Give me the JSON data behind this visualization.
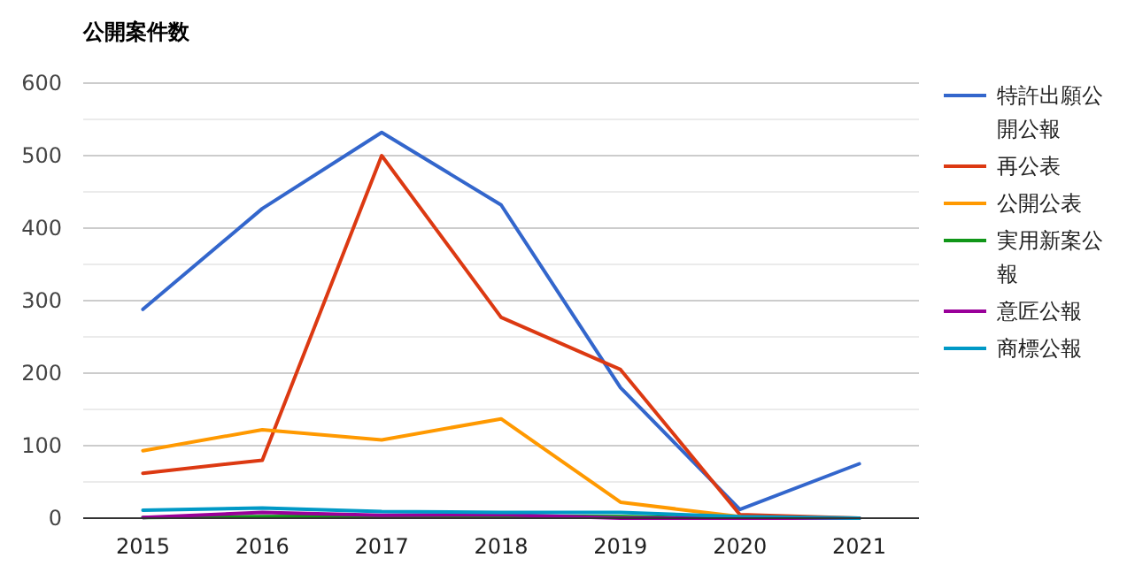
{
  "chart_data": {
    "type": "line",
    "title": "公開案件数",
    "categories": [
      "2015",
      "2016",
      "2017",
      "2018",
      "2019",
      "2020",
      "2021"
    ],
    "series": [
      {
        "name": "特許出願公開公報",
        "color": "#3366cc",
        "values": [
          288,
          427,
          532,
          432,
          180,
          12,
          75
        ]
      },
      {
        "name": "再公表",
        "color": "#dc3912",
        "values": [
          62,
          80,
          500,
          277,
          205,
          5,
          0
        ]
      },
      {
        "name": "公開公表",
        "color": "#ff9900",
        "values": [
          93,
          122,
          108,
          137,
          22,
          2,
          null
        ]
      },
      {
        "name": "実用新案公報",
        "color": "#109618",
        "values": [
          1,
          2,
          3,
          3,
          2,
          0,
          0
        ]
      },
      {
        "name": "意匠公報",
        "color": "#990099",
        "values": [
          1,
          8,
          4,
          5,
          0,
          0,
          0
        ]
      },
      {
        "name": "商標公報",
        "color": "#0099c6",
        "values": [
          11,
          14,
          9,
          8,
          8,
          2,
          0
        ]
      }
    ],
    "ylim": [
      0,
      600
    ],
    "yticks": [
      0,
      {
        "value": 50,
        "label": null
      },
      100,
      {
        "value": 150,
        "label": null
      },
      200,
      {
        "value": 250,
        "label": null
      },
      300,
      {
        "value": 350,
        "label": null
      },
      400,
      {
        "value": 450,
        "label": null
      },
      500,
      {
        "value": 550,
        "label": null
      },
      600
    ],
    "grid": "y",
    "legend": "right",
    "marker": "none",
    "line_style": "solid"
  }
}
